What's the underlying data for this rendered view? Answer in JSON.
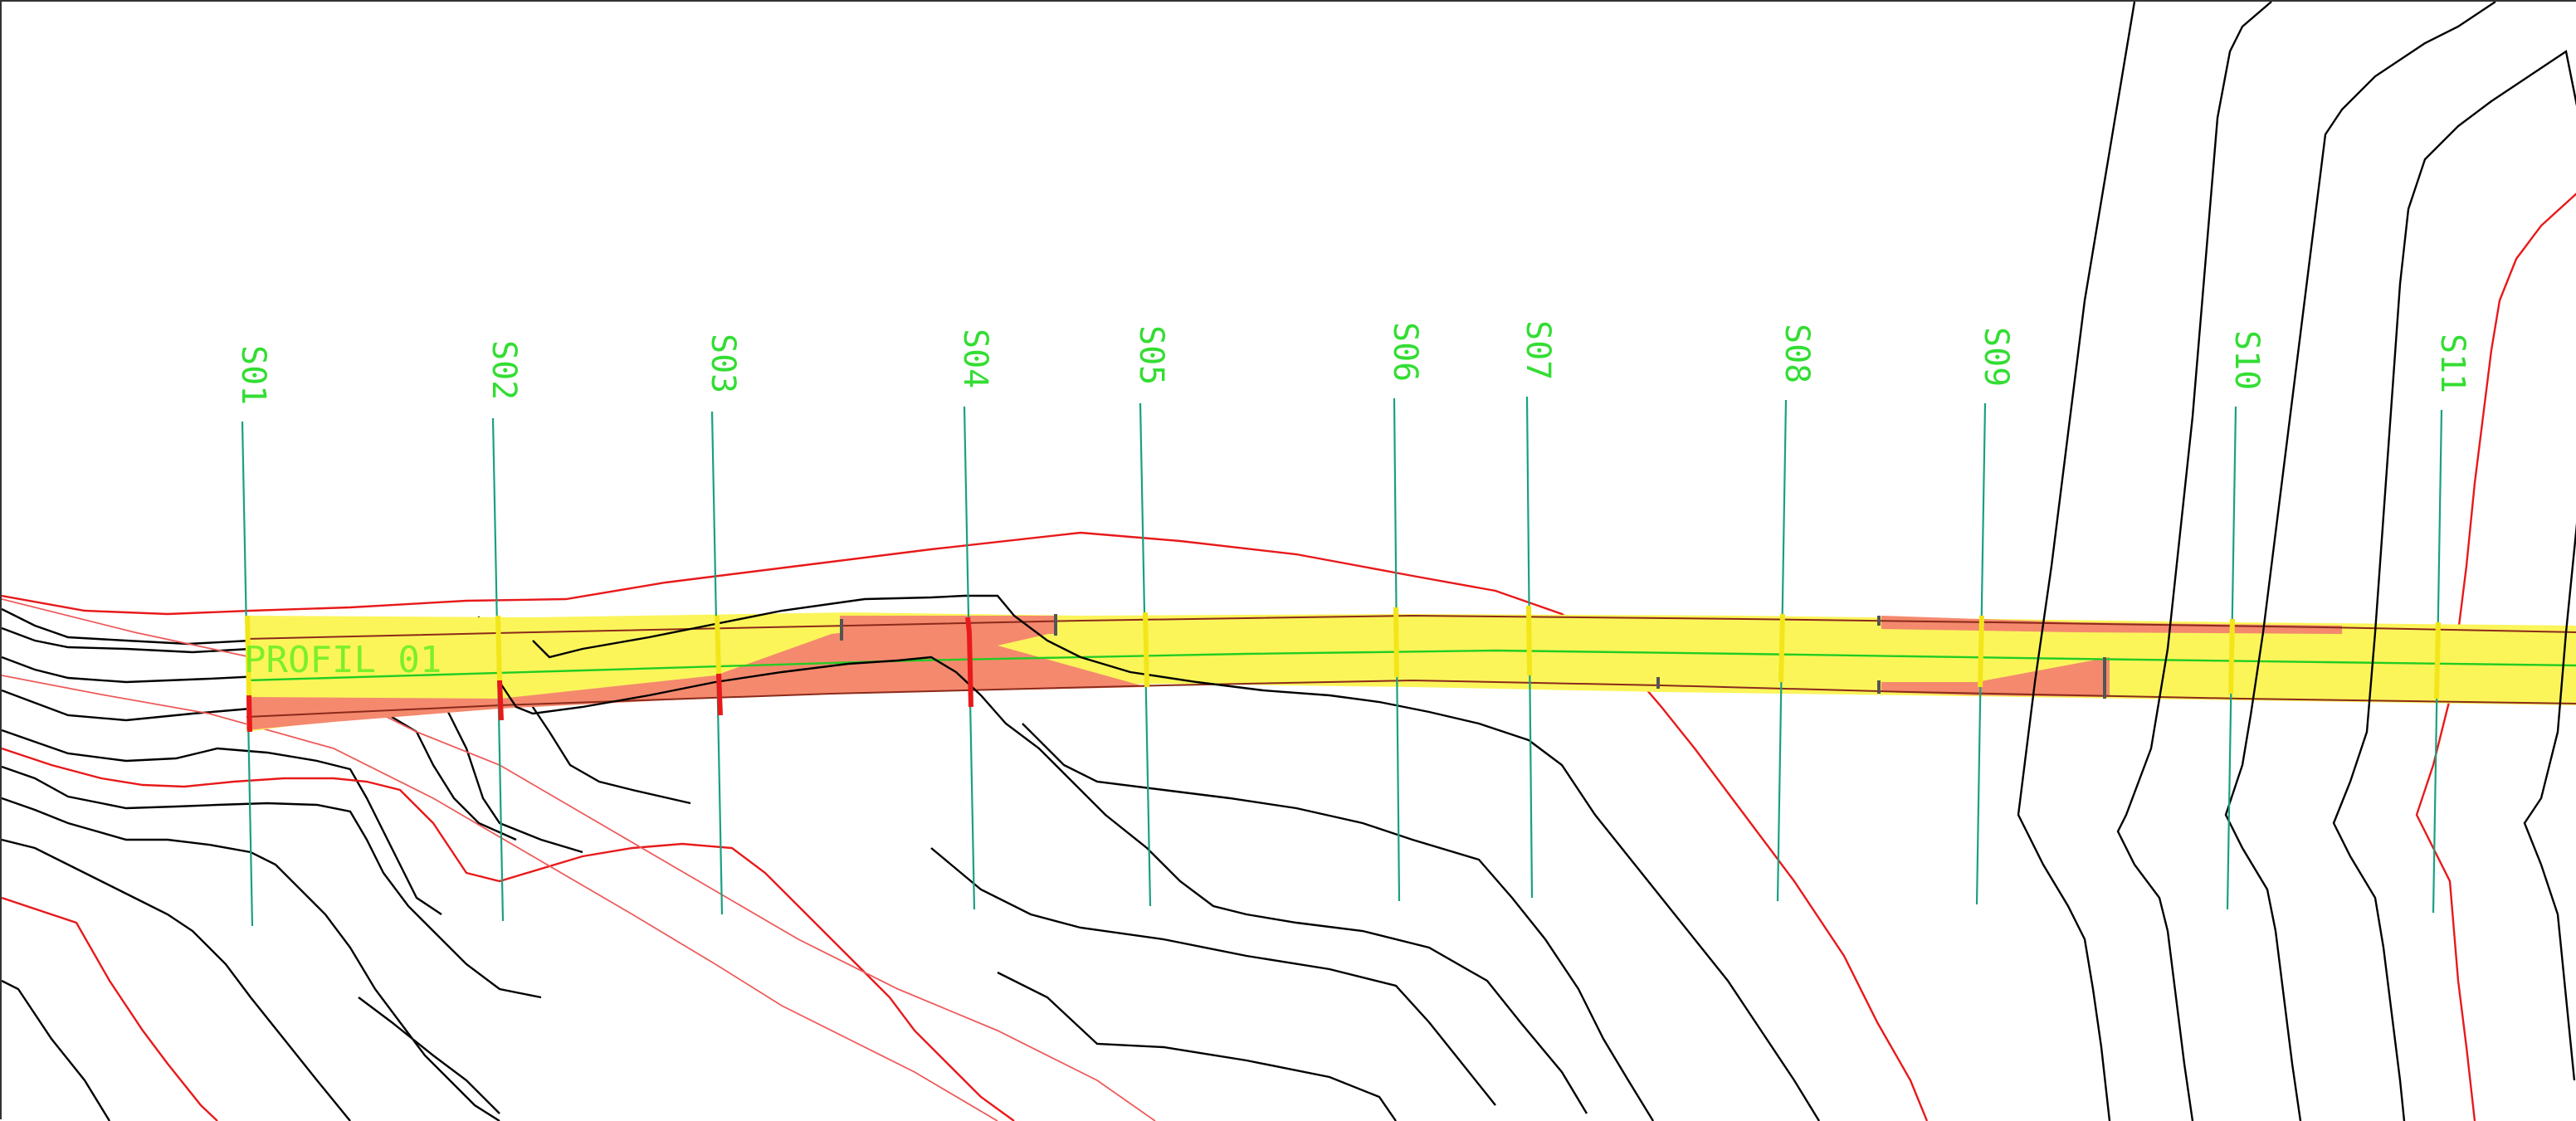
{
  "drawing": {
    "profile_label": "PROFIL 01",
    "sections": [
      "S01",
      "S02",
      "S03",
      "S04",
      "S05",
      "S06",
      "S07",
      "S08",
      "S09",
      "S10",
      "S11"
    ]
  },
  "colors": {
    "background": "#ffffff",
    "contour": "#000000",
    "boundary": "#e8191a",
    "section_line": "#1aa080",
    "section_label": "#33dd33",
    "centerline": "#22cc22",
    "corridor_fill": "#fbf55a",
    "cut_fill": "#f4896e",
    "section_tick": "#f2e61a",
    "section_tick_cut": "#e8191a"
  }
}
